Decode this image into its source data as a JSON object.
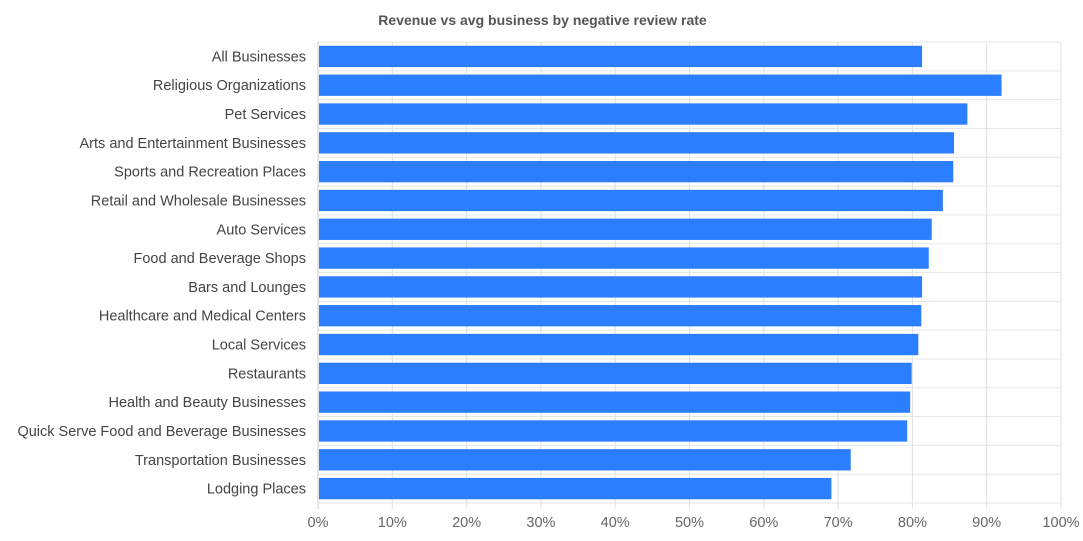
{
  "chart_data": {
    "type": "bar",
    "orientation": "horizontal",
    "title": "Revenue vs avg business by negative review rate",
    "xlabel": "",
    "ylabel": "",
    "xlim": [
      0,
      100
    ],
    "x_tick_values": [
      0,
      10,
      20,
      30,
      40,
      50,
      60,
      70,
      80,
      90,
      100
    ],
    "x_tick_labels": [
      "0%",
      "10%",
      "20%",
      "30%",
      "40%",
      "50%",
      "60%",
      "70%",
      "80%",
      "90%",
      "100%"
    ],
    "grid": true,
    "legend": "none",
    "bar_color": "#2b7fff",
    "categories": [
      "All Businesses",
      "Religious Organizations",
      "Pet Services",
      "Arts and Entertainment Businesses",
      "Sports and Recreation Places",
      "Retail and Wholesale Businesses",
      "Auto Services",
      "Food and Beverage Shops",
      "Bars and Lounges",
      "Healthcare and Medical Centers",
      "Local Services",
      "Restaurants",
      "Health and Beauty Businesses",
      "Quick Serve Food and Beverage Businesses",
      "Transportation Businesses",
      "Lodging Places"
    ],
    "values": [
      81.3,
      92.0,
      87.4,
      85.6,
      85.5,
      84.1,
      82.6,
      82.2,
      81.3,
      81.2,
      80.8,
      79.9,
      79.7,
      79.3,
      71.7,
      69.1
    ]
  }
}
